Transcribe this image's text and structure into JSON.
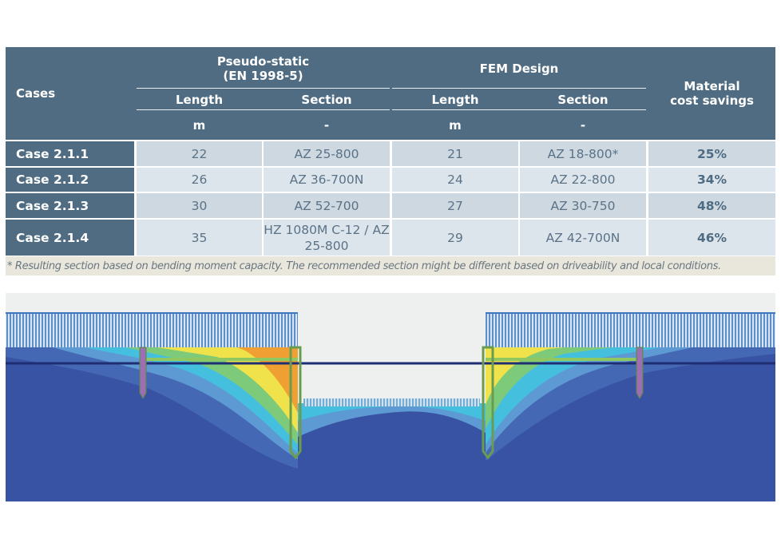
{
  "table": {
    "header": {
      "cases": "Cases",
      "group_1": [
        "Pseudo-static",
        "(EN 1998-5)"
      ],
      "group_2": "FEM Design",
      "savings": [
        "Material",
        "cost savings"
      ],
      "columns": [
        "Length",
        "Section",
        "Length",
        "Section"
      ],
      "units": [
        "m",
        "-",
        "m",
        "-"
      ]
    },
    "rows": [
      [
        "Case 2.1.1",
        "22",
        "AZ 25-800",
        "21",
        "AZ 18-800*",
        "25%"
      ],
      [
        "Case 2.1.2",
        "26",
        "AZ 36-700N",
        "24",
        "AZ 22-800",
        "34%"
      ],
      [
        "Case 2.1.3",
        "30",
        "AZ 52-700",
        "27",
        "AZ 30-750",
        "48%"
      ],
      [
        "Case 2.1.4",
        "35",
        "HZ 1080M C-12 / AZ 25-800",
        "29",
        "AZ 42-700N",
        "46%"
      ]
    ],
    "footnote": "* Resulting section based on bending moment capacity. The recommended section might be different based on driveability and local conditions."
  }
}
